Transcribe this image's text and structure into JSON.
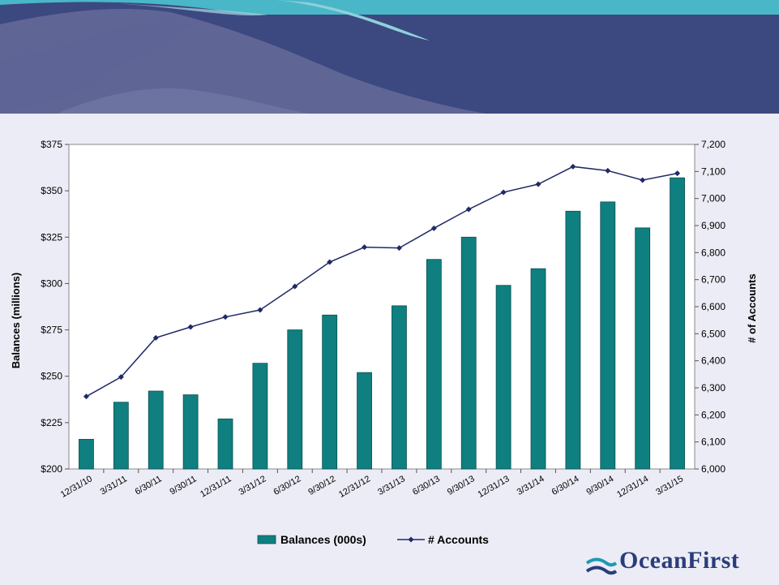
{
  "logo": {
    "text": "OceanFirst"
  },
  "colors": {
    "banner_dark": "#3c4880",
    "banner_teal": "#49b7c8",
    "bar": "#0f7f80",
    "line": "#1f2a66"
  },
  "chart_data": {
    "type": "bar+line",
    "categories": [
      "12/31/10",
      "3/31/11",
      "6/30/11",
      "9/30/11",
      "12/31/11",
      "3/31/12",
      "6/30/12",
      "9/30/12",
      "12/31/12",
      "3/31/13",
      "6/30/13",
      "9/30/13",
      "12/31/13",
      "3/31/14",
      "6/30/14",
      "9/30/14",
      "12/31/14",
      "3/31/15"
    ],
    "series": [
      {
        "name": "Balances (000s)",
        "type": "bar",
        "axis": "left",
        "values": [
          216,
          236,
          242,
          240,
          227,
          257,
          275,
          283,
          252,
          288,
          313,
          325,
          299,
          308,
          339,
          344,
          330,
          357
        ]
      },
      {
        "name": "# Accounts",
        "type": "line",
        "axis": "right",
        "values": [
          6268,
          6340,
          6485,
          6525,
          6562,
          6588,
          6675,
          6765,
          6820,
          6817,
          6890,
          6960,
          7023,
          7053,
          7118,
          7103,
          7068,
          7093
        ]
      }
    ],
    "ylabel": "Balances (millions)",
    "y2label": "# of Accounts",
    "ylim": [
      200,
      375
    ],
    "y2lim": [
      6000,
      7200
    ],
    "yticks": [
      "$200",
      "$225",
      "$250",
      "$275",
      "$300",
      "$325",
      "$350",
      "$375"
    ],
    "y2ticks": [
      "6,000",
      "6,100",
      "6,200",
      "6,300",
      "6,400",
      "6,500",
      "6,600",
      "6,700",
      "6,800",
      "6,900",
      "7,000",
      "7,100",
      "7,200"
    ],
    "grid": false,
    "legend_position": "bottom"
  }
}
